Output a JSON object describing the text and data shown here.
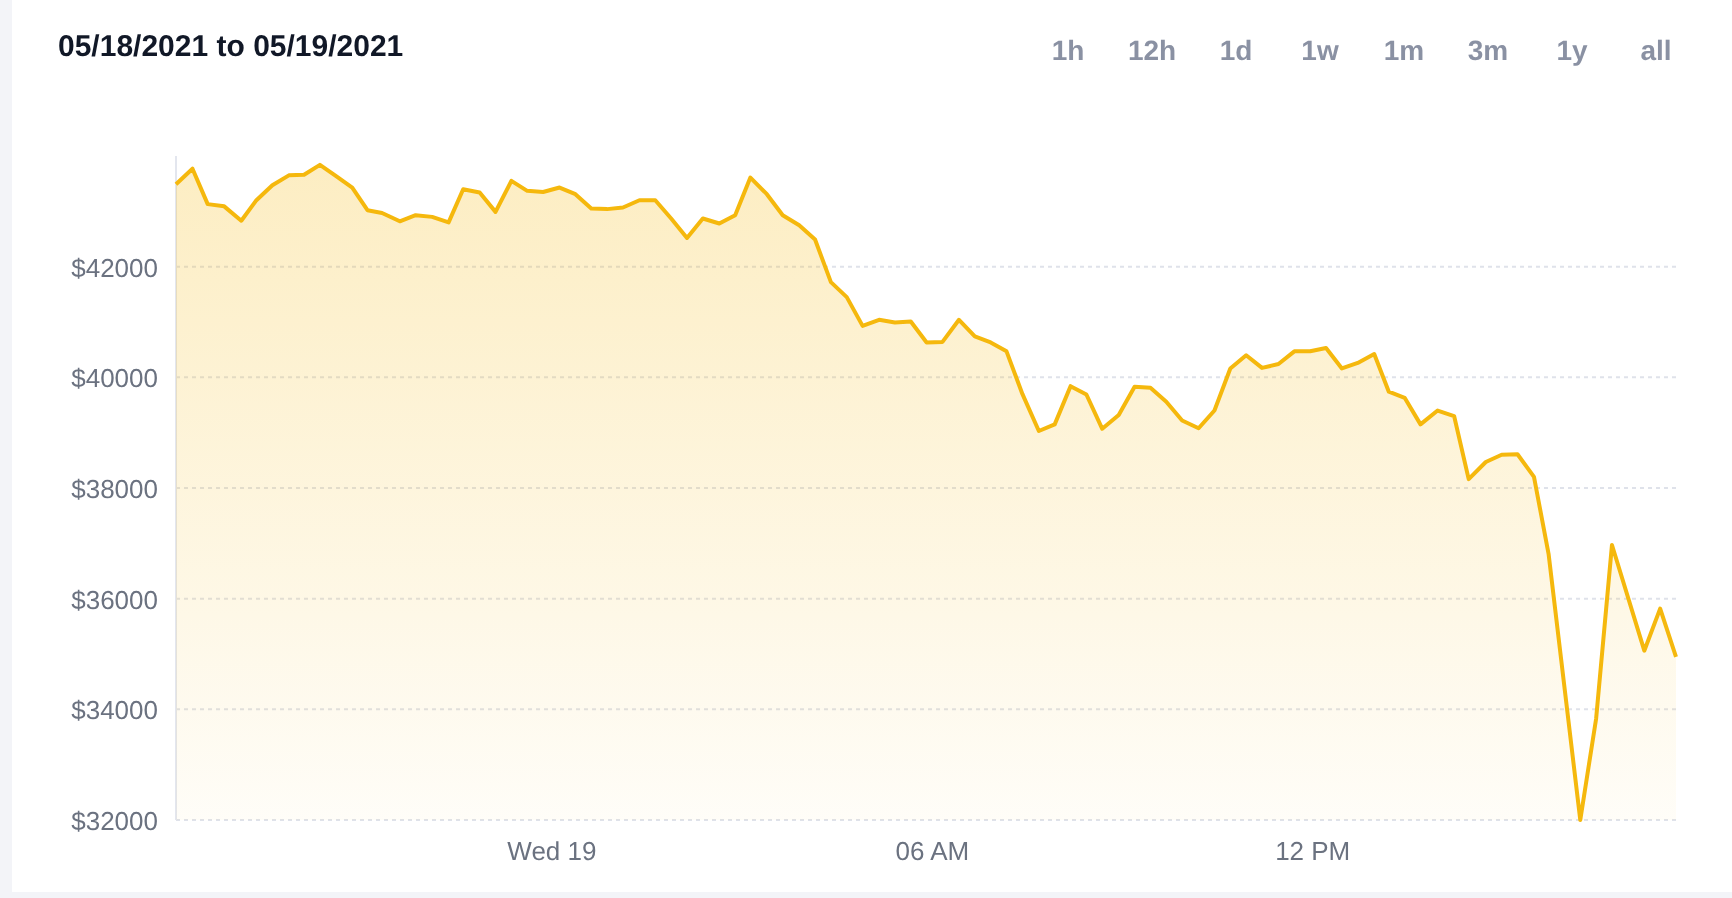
{
  "chart_data": {
    "type": "area",
    "title": "05/18/2021 to 05/19/2021",
    "annotations": [
      "1h",
      "12h",
      "1d",
      "1w",
      "1m",
      "3m",
      "1y",
      "all"
    ],
    "x": [
      -5.93,
      -5.67,
      -5.43,
      -5.17,
      -4.9,
      -4.67,
      -4.41,
      -4.15,
      -3.91,
      -3.66,
      -3.41,
      -3.15,
      -2.91,
      -2.68,
      -2.4,
      -2.15,
      -1.89,
      -1.63,
      -1.4,
      -1.14,
      -0.89,
      -0.64,
      -0.39,
      -0.14,
      0.12,
      0.37,
      0.62,
      0.87,
      1.12,
      1.38,
      1.63,
      1.88,
      2.13,
      2.38,
      2.64,
      2.89,
      3.13,
      3.39,
      3.64,
      3.9,
      4.15,
      4.4,
      4.65,
      4.9,
      5.16,
      5.41,
      5.66,
      5.91,
      6.16,
      6.42,
      6.67,
      6.92,
      7.17,
      7.42,
      7.68,
      7.93,
      8.18,
      8.43,
      8.68,
      8.94,
      9.19,
      9.44,
      9.69,
      9.94,
      10.2,
      10.45,
      10.7,
      10.95,
      11.2,
      11.46,
      11.71,
      11.96,
      12.21,
      12.46,
      12.71,
      12.97,
      13.2,
      13.45,
      13.7,
      13.97,
      14.23,
      14.46,
      14.73,
      14.98,
      15.23,
      15.49,
      15.72,
      16.22,
      16.47,
      16.72,
      17.23,
      17.48,
      17.73
    ],
    "series": [
      {
        "color": "#f5b80d",
        "values": [
          43490,
          43770,
          43130,
          43090,
          42830,
          43190,
          43470,
          43650,
          43660,
          43840,
          43640,
          43430,
          43020,
          42970,
          42820,
          42930,
          42900,
          42800,
          43400,
          43340,
          42990,
          43550,
          43370,
          43350,
          43430,
          43310,
          43050,
          43040,
          43070,
          43200,
          43200,
          42870,
          42520,
          42870,
          42780,
          42930,
          43610,
          43310,
          42930,
          42750,
          42490,
          41720,
          41450,
          40930,
          41040,
          40990,
          41010,
          40630,
          40640,
          41040,
          40740,
          40630,
          40470,
          39700,
          39030,
          39150,
          39840,
          39690,
          39070,
          39320,
          39830,
          39810,
          39560,
          39220,
          39080,
          39400,
          40160,
          40400,
          40170,
          40240,
          40470,
          40470,
          40530,
          40160,
          40260,
          40420,
          39740,
          39630,
          39150,
          39400,
          39300,
          38160,
          38470,
          38600,
          38610,
          38200,
          36810,
          32000,
          33830,
          36970,
          35060,
          35820,
          34950
        ]
      }
    ],
    "xlim": [
      -5.93,
      17.73
    ],
    "xticks": [
      {
        "value": 0,
        "label": "Wed 19"
      },
      {
        "value": 6,
        "label": "06 AM"
      },
      {
        "value": 12,
        "label": "12 PM"
      }
    ],
    "ylim": [
      32000,
      44000
    ],
    "yticks": [
      {
        "value": 32000,
        "label": "$32000"
      },
      {
        "value": 34000,
        "label": "$34000"
      },
      {
        "value": 36000,
        "label": "$36000"
      },
      {
        "value": 38000,
        "label": "$38000"
      },
      {
        "value": 40000,
        "label": "$40000"
      },
      {
        "value": 42000,
        "label": "$42000"
      }
    ],
    "grid": "y",
    "marker": "none",
    "line_style": "solid"
  }
}
